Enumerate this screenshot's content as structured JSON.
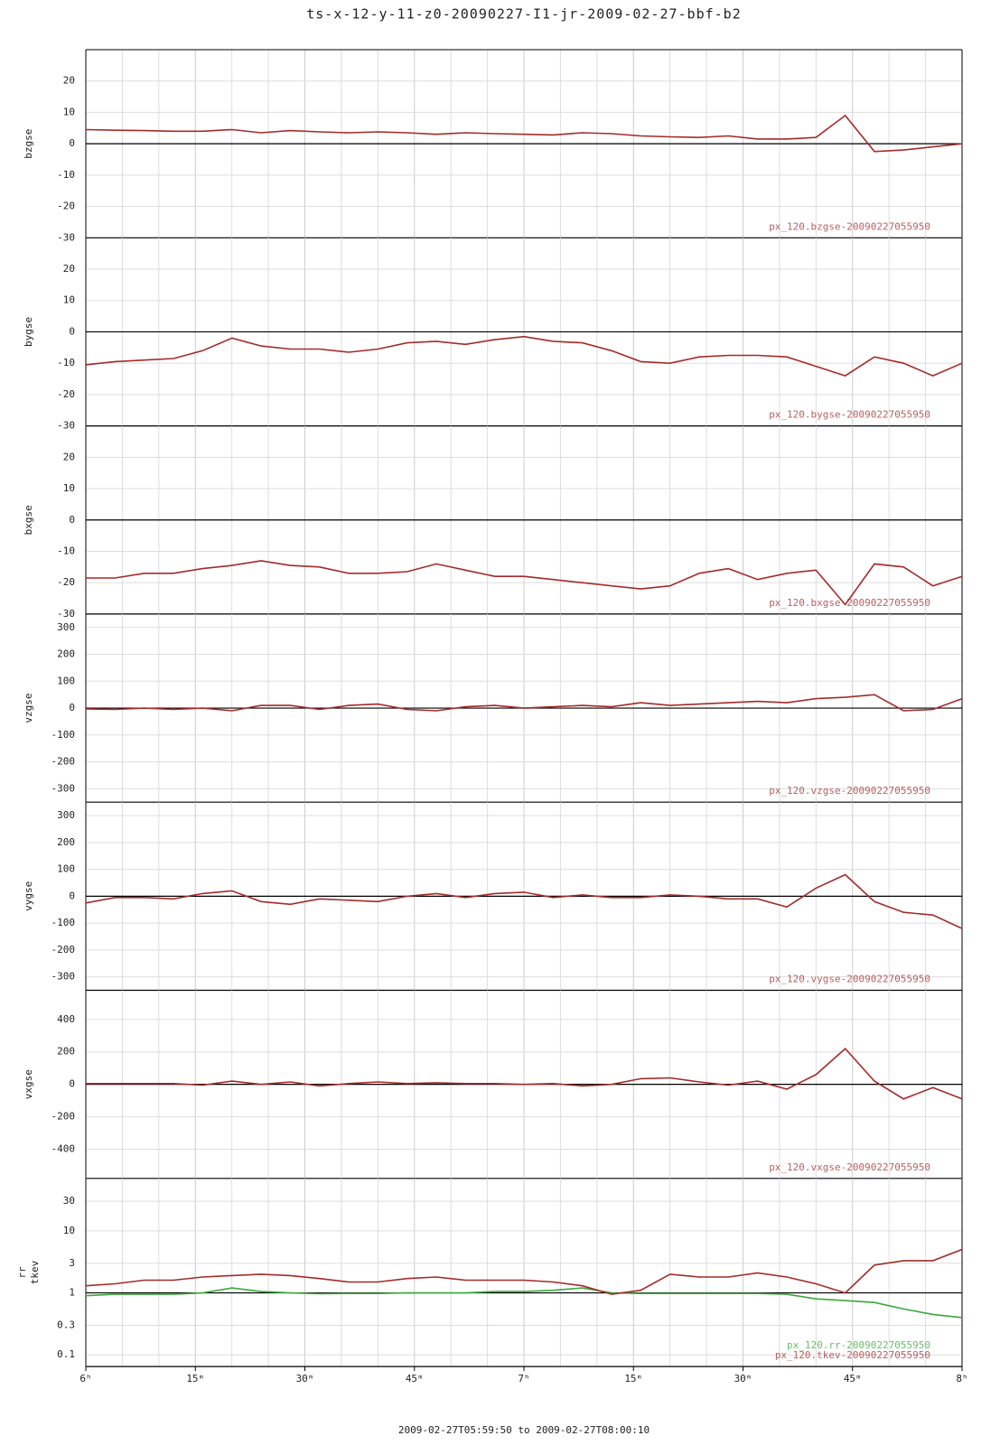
{
  "chart_data": {
    "type": "line",
    "title": "ts-x-12-y-11-z0-20090227-I1-jr-2009-02-27-bbf-b2",
    "xlabel": "2009-02-27T05:59:50 to 2009-02-27T08:00:10",
    "x": [
      "2009-02-27T06:00",
      "2009-02-27T06:04",
      "2009-02-27T06:08",
      "2009-02-27T06:12",
      "2009-02-27T06:16",
      "2009-02-27T06:20",
      "2009-02-27T06:24",
      "2009-02-27T06:28",
      "2009-02-27T06:32",
      "2009-02-27T06:36",
      "2009-02-27T06:40",
      "2009-02-27T06:44",
      "2009-02-27T06:48",
      "2009-02-27T06:52",
      "2009-02-27T06:56",
      "2009-02-27T07:00",
      "2009-02-27T07:04",
      "2009-02-27T07:08",
      "2009-02-27T07:12",
      "2009-02-27T07:16",
      "2009-02-27T07:20",
      "2009-02-27T07:24",
      "2009-02-27T07:28",
      "2009-02-27T07:32",
      "2009-02-27T07:36",
      "2009-02-27T07:40",
      "2009-02-27T07:44",
      "2009-02-27T07:48",
      "2009-02-27T07:52",
      "2009-02-27T07:56",
      "2009-02-27T08:00"
    ],
    "xlim": [
      "2009-02-27T06:00",
      "2009-02-27T08:00"
    ],
    "xticks": [
      {
        "value": "2009-02-27T06:00",
        "label": "6ʰ"
      },
      {
        "value": "2009-02-27T06:15",
        "label": "15ᵐ"
      },
      {
        "value": "2009-02-27T06:30",
        "label": "30ᵐ"
      },
      {
        "value": "2009-02-27T06:45",
        "label": "45ᵐ"
      },
      {
        "value": "2009-02-27T07:00",
        "label": "7ʰ"
      },
      {
        "value": "2009-02-27T07:15",
        "label": "15ᵐ"
      },
      {
        "value": "2009-02-27T07:30",
        "label": "30ᵐ"
      },
      {
        "value": "2009-02-27T07:45",
        "label": "45ᵐ"
      },
      {
        "value": "2009-02-27T08:00",
        "label": "8ʰ"
      }
    ],
    "xminor": [
      "2009-02-27T06:05",
      "2009-02-27T06:10",
      "2009-02-27T06:20",
      "2009-02-27T06:25",
      "2009-02-27T06:35",
      "2009-02-27T06:40",
      "2009-02-27T06:50",
      "2009-02-27T06:55",
      "2009-02-27T07:05",
      "2009-02-27T07:10",
      "2009-02-27T07:20",
      "2009-02-27T07:25",
      "2009-02-27T07:35",
      "2009-02-27T07:40",
      "2009-02-27T07:50",
      "2009-02-27T07:55"
    ],
    "grid": true,
    "panels": [
      {
        "ylabels": [
          "bzgse"
        ],
        "ylim": [
          -30,
          30
        ],
        "yticks": [
          -30,
          -20,
          -10,
          0,
          10,
          20
        ],
        "series": [
          {
            "name": "px_120.bzgse-20090227055950",
            "color": "#a52a2a",
            "values": [
              4.5,
              4.3,
              4.2,
              4,
              4,
              4.5,
              3.5,
              4.2,
              3.8,
              3.5,
              3.8,
              3.5,
              3,
              3.5,
              3.2,
              3,
              2.8,
              3.5,
              3.2,
              2.5,
              2.2,
              2,
              2.5,
              1.5,
              1.5,
              2,
              9,
              -2.5,
              -2,
              -1,
              0
            ]
          }
        ]
      },
      {
        "ylabels": [
          "bygse"
        ],
        "ylim": [
          -30,
          30
        ],
        "yticks": [
          -30,
          -20,
          -10,
          0,
          10,
          20
        ],
        "series": [
          {
            "name": "px_120.bygse-20090227055950",
            "color": "#a52a2a",
            "values": [
              -10.5,
              -9.5,
              -9,
              -8.5,
              -6,
              -2,
              -4.5,
              -5.5,
              -5.5,
              -6.5,
              -5.5,
              -3.5,
              -3,
              -4,
              -2.5,
              -1.5,
              -3,
              -3.5,
              -6,
              -9.5,
              -10,
              -8,
              -7.5,
              -7.5,
              -8,
              -11,
              -14,
              -8,
              -10,
              -14,
              -10
            ]
          }
        ]
      },
      {
        "ylabels": [
          "bxgse"
        ],
        "ylim": [
          -30,
          30
        ],
        "yticks": [
          -30,
          -20,
          -10,
          0,
          10,
          20
        ],
        "series": [
          {
            "name": "px_120.bxgse-20090227055950",
            "color": "#a52a2a",
            "values": [
              -18.5,
              -18.5,
              -17,
              -17,
              -15.5,
              -14.5,
              -13,
              -14.5,
              -15,
              -17,
              -17,
              -16.5,
              -14,
              -16,
              -18,
              -18,
              -19,
              -20,
              -21,
              -22,
              -21,
              -17,
              -15.5,
              -19,
              -17,
              -16,
              -27,
              -14,
              -15,
              -21,
              -18
            ]
          }
        ]
      },
      {
        "ylabels": [
          "vzgse"
        ],
        "ylim": [
          -350,
          350
        ],
        "yticks": [
          -300,
          -200,
          -100,
          0,
          100,
          200,
          300
        ],
        "series": [
          {
            "name": "px_120.vzgse-20090227055950",
            "color": "#a52a2a",
            "values": [
              -3,
              -5,
              0,
              -5,
              0,
              -10,
              10,
              10,
              -5,
              10,
              15,
              -5,
              -10,
              5,
              10,
              0,
              5,
              10,
              5,
              20,
              10,
              15,
              20,
              25,
              20,
              35,
              40,
              50,
              -10,
              -5,
              35
            ]
          }
        ]
      },
      {
        "ylabels": [
          "vygse"
        ],
        "ylim": [
          -350,
          350
        ],
        "yticks": [
          -300,
          -200,
          -100,
          0,
          100,
          200,
          300
        ],
        "series": [
          {
            "name": "px_120.vygse-20090227055950",
            "color": "#a52a2a",
            "values": [
              -25,
              -5,
              -5,
              -10,
              10,
              20,
              -20,
              -30,
              -10,
              -15,
              -20,
              0,
              10,
              -5,
              10,
              15,
              -5,
              5,
              -5,
              -5,
              5,
              0,
              -10,
              -10,
              -40,
              30,
              80,
              -20,
              -60,
              -70,
              -120
            ]
          }
        ]
      },
      {
        "ylabels": [
          "vxgse"
        ],
        "ylim": [
          -580,
          580
        ],
        "yticks": [
          -400,
          -200,
          0,
          200,
          400
        ],
        "series": [
          {
            "name": "px_120.vxgse-20090227055950",
            "color": "#a52a2a",
            "values": [
              5,
              5,
              5,
              5,
              -5,
              20,
              0,
              15,
              -10,
              5,
              15,
              5,
              10,
              5,
              5,
              0,
              5,
              -10,
              0,
              35,
              40,
              15,
              -5,
              20,
              -30,
              60,
              220,
              20,
              -90,
              -20,
              -90
            ]
          }
        ]
      },
      {
        "ylabels": [
          "rr",
          "tkev"
        ],
        "log": true,
        "ylim": [
          0.065,
          70
        ],
        "yticks": [
          0.1,
          0.3,
          1,
          3,
          10,
          30
        ],
        "series": [
          {
            "name": "px_120.rr-20090227055950",
            "color": "#3aa83a",
            "values": [
              0.9,
              0.95,
              0.95,
              0.95,
              1,
              1.2,
              1.05,
              1,
              0.97,
              0.98,
              0.98,
              1,
              1,
              1,
              1.05,
              1.05,
              1.1,
              1.2,
              1,
              0.98,
              0.98,
              0.98,
              0.98,
              0.98,
              0.95,
              0.8,
              0.75,
              0.7,
              0.55,
              0.45,
              0.4
            ]
          },
          {
            "name": "px_120.tkev-20090227055950",
            "color": "#a52a2a",
            "values": [
              1.3,
              1.4,
              1.6,
              1.6,
              1.8,
              1.9,
              2,
              1.9,
              1.7,
              1.5,
              1.5,
              1.7,
              1.8,
              1.6,
              1.6,
              1.6,
              1.5,
              1.3,
              0.95,
              1.1,
              2,
              1.8,
              1.8,
              2.1,
              1.8,
              1.4,
              1,
              2.8,
              3.3,
              3.3,
              5
            ]
          }
        ]
      }
    ]
  }
}
